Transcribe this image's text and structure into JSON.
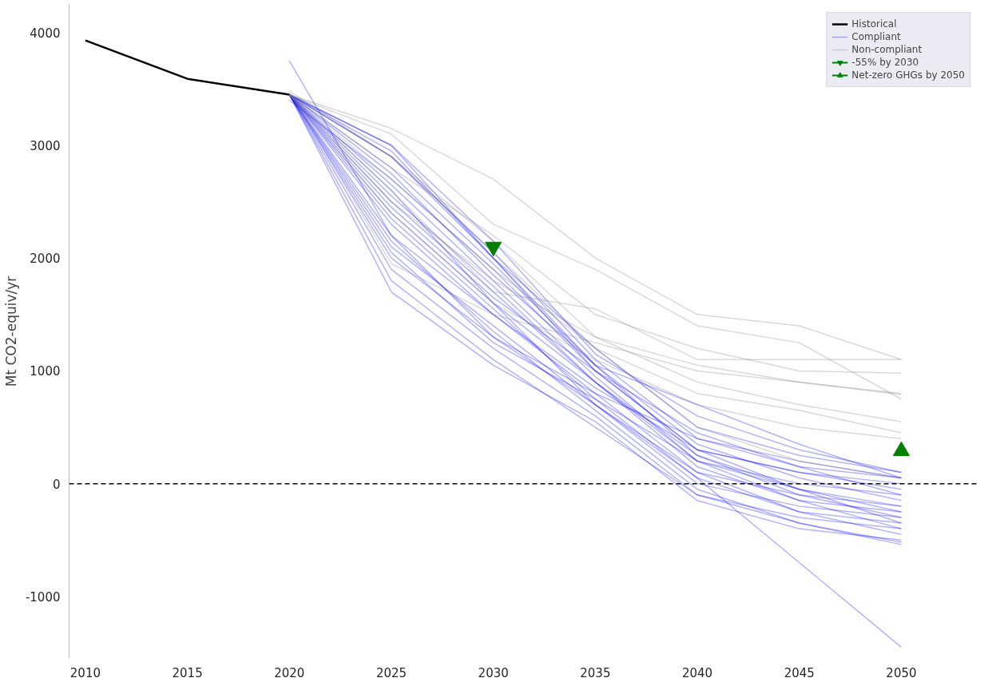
{
  "chart_data": {
    "type": "line",
    "ylabel": "Mt CO2-equiv/yr",
    "xlim": [
      2009.2,
      2053.8
    ],
    "xticks": [
      2010,
      2015,
      2020,
      2025,
      2030,
      2035,
      2040,
      2045,
      2050
    ],
    "ylim": [
      -1550,
      4250
    ],
    "yticks": [
      -1000,
      0,
      1000,
      2000,
      3000,
      4000
    ],
    "grid": false,
    "legend": "top right",
    "ref_lines": [
      {
        "axis": "y",
        "value": 0,
        "color": "#000000",
        "line_style": "dashed"
      }
    ],
    "x": [
      2020,
      2025,
      2030,
      2035,
      2040,
      2045,
      2050
    ],
    "series": [
      {
        "name": "Historical",
        "color": "#000000",
        "x": [
          2010,
          2015,
          2020
        ],
        "values": [
          3930,
          3590,
          3450
        ]
      },
      {
        "name": "Compliant",
        "color": "#0000ff",
        "values": [
          3450,
          2900,
          2050,
          1100,
          400,
          200,
          50
        ]
      },
      {
        "color": "#0000ff",
        "values": [
          3450,
          3000,
          2000,
          1200,
          500,
          250,
          100
        ]
      },
      {
        "color": "#0000ff",
        "values": [
          3400,
          2700,
          1900,
          1000,
          300,
          100,
          -50
        ]
      },
      {
        "color": "#0000ff",
        "values": [
          3450,
          2500,
          1700,
          900,
          200,
          0,
          -100
        ]
      },
      {
        "color": "#0000ff",
        "values": [
          3450,
          2300,
          1500,
          800,
          100,
          -100,
          -200
        ]
      },
      {
        "color": "#0000ff",
        "values": [
          3450,
          2100,
          1400,
          700,
          0,
          -200,
          -300
        ]
      },
      {
        "color": "#0000ff",
        "values": [
          3450,
          1900,
          1200,
          600,
          -100,
          -300,
          -400
        ]
      },
      {
        "color": "#0000ff",
        "values": [
          3450,
          1700,
          1050,
          550,
          -150,
          -400,
          -500
        ]
      },
      {
        "color": "#0000ff",
        "values": [
          3750,
          2200,
          1300,
          700,
          100,
          -250,
          -350
        ]
      },
      {
        "color": "#0000ff",
        "values": [
          3450,
          2600,
          1600,
          700,
          50,
          -700,
          -1450
        ]
      },
      {
        "color": "#0000ff",
        "values": [
          3450,
          2800,
          1950,
          1050,
          350,
          50,
          -150
        ]
      },
      {
        "color": "#0000ff",
        "values": [
          3450,
          2400,
          1600,
          900,
          250,
          -50,
          -250
        ]
      },
      {
        "color": "#0000ff",
        "values": [
          3450,
          2200,
          1500,
          850,
          300,
          100,
          0
        ]
      },
      {
        "color": "#0000ff",
        "values": [
          3450,
          2000,
          1300,
          800,
          400,
          150,
          50
        ]
      },
      {
        "color": "#0000ff",
        "values": [
          3450,
          2950,
          2000,
          1000,
          300,
          -50,
          -350
        ]
      },
      {
        "color": "#0000ff",
        "values": [
          3450,
          2650,
          1800,
          950,
          200,
          -150,
          -400
        ]
      },
      {
        "color": "#0000ff",
        "values": [
          3450,
          2350,
          1550,
          750,
          50,
          -250,
          -450
        ]
      },
      {
        "color": "#0000ff",
        "values": [
          3450,
          2150,
          1350,
          650,
          -50,
          -350,
          -520
        ]
      },
      {
        "color": "#0000ff",
        "values": [
          3450,
          3000,
          2150,
          1150,
          600,
          300,
          100
        ]
      },
      {
        "color": "#0000ff",
        "values": [
          3450,
          2750,
          1850,
          1050,
          700,
          350,
          50
        ]
      },
      {
        "color": "#0000ff",
        "values": [
          3450,
          2450,
          1650,
          1000,
          450,
          150,
          -100
        ]
      },
      {
        "color": "#0000ff",
        "values": [
          3450,
          1800,
          1100,
          500,
          -100,
          -350,
          -540
        ]
      },
      {
        "color": "#0000ff",
        "values": [
          3450,
          2900,
          2000,
          1050,
          250,
          -100,
          -300
        ]
      },
      {
        "color": "#0000ff",
        "values": [
          3450,
          2550,
          1750,
          900,
          150,
          -150,
          -250
        ]
      },
      {
        "color": "#0000ff",
        "values": [
          3450,
          2050,
          1250,
          750,
          200,
          -50,
          -200
        ]
      },
      {
        "name": "Non-compliant",
        "color": "#808080",
        "values": [
          3450,
          3150,
          2700,
          2000,
          1500,
          1400,
          1100
        ]
      },
      {
        "color": "#808080",
        "values": [
          3450,
          3100,
          2300,
          1900,
          1400,
          1250,
          750
        ]
      },
      {
        "color": "#808080",
        "values": [
          3480,
          2900,
          2150,
          1300,
          1050,
          900,
          790
        ]
      },
      {
        "color": "#808080",
        "values": [
          3470,
          1950,
          1500,
          1250,
          1000,
          900,
          800
        ]
      },
      {
        "color": "#808080",
        "values": [
          3450,
          2600,
          1700,
          1550,
          1100,
          1100,
          1100
        ]
      },
      {
        "color": "#808080",
        "values": [
          3450,
          2800,
          2200,
          1500,
          1200,
          1000,
          980
        ]
      },
      {
        "color": "#808080",
        "values": [
          3450,
          2500,
          1800,
          1300,
          900,
          700,
          550
        ]
      },
      {
        "color": "#808080",
        "values": [
          3450,
          2700,
          1900,
          1200,
          800,
          650,
          450
        ]
      },
      {
        "color": "#808080",
        "values": [
          3450,
          2400,
          1600,
          1100,
          700,
          500,
          400
        ]
      },
      {
        "color": "#808080",
        "values": [
          3450,
          2900,
          2050,
          1200,
          500,
          200,
          50
        ]
      },
      {
        "name": "-55% by 2030",
        "color": "#008000",
        "marker": "triangle_down",
        "x": [
          2030
        ],
        "values": [
          2100
        ]
      },
      {
        "name": "Net-zero GHGs by 2050",
        "color": "#008000",
        "marker": "triangle",
        "x": [
          2050
        ],
        "values": [
          290
        ]
      }
    ]
  }
}
